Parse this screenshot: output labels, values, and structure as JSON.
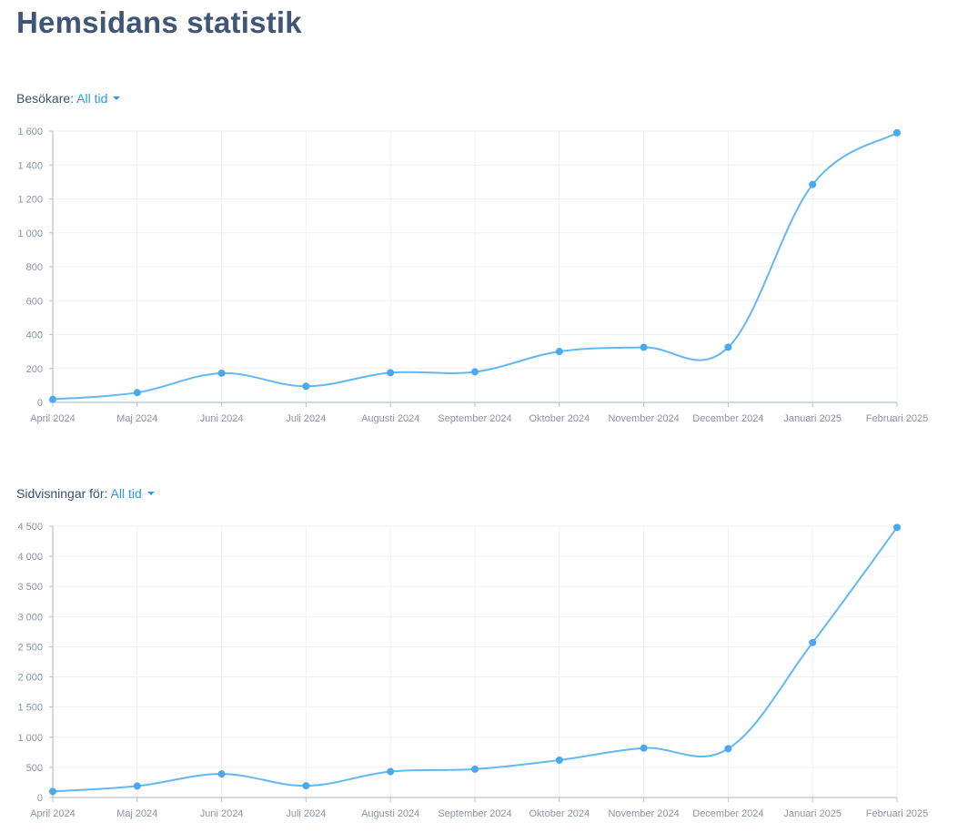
{
  "page": {
    "title": "Hemsidans statistik"
  },
  "charts": [
    {
      "label": "Besökare:",
      "range": "All tid"
    },
    {
      "label": "Sidvisningar för:",
      "range": "All tid"
    }
  ],
  "colors": {
    "line": "#62b8f0",
    "point": "#4aa8ec",
    "grid": "#eef0f4",
    "axis": "#b9bfcc",
    "title": "#3f5676",
    "link": "#2b9ae8"
  },
  "chart_data": [
    {
      "type": "line",
      "title": "",
      "xlabel": "",
      "ylabel": "",
      "categories": [
        "April 2024",
        "Maj 2024",
        "Juni 2024",
        "Juli 2024",
        "Augusti 2024",
        "September 2024",
        "Oktober 2024",
        "November 2024",
        "December 2024",
        "Januari 2025",
        "Februari 2025"
      ],
      "values": [
        18,
        58,
        172,
        95,
        175,
        180,
        300,
        325,
        325,
        1285,
        1590
      ],
      "ylim": [
        0,
        1600
      ],
      "yticks": [
        0,
        200,
        400,
        600,
        800,
        1000,
        1200,
        1400,
        1600
      ],
      "ytick_labels": [
        "0",
        "200",
        "400",
        "600",
        "800",
        "1 000",
        "1 200",
        "1 400",
        "1 600"
      ],
      "grid": true
    },
    {
      "type": "line",
      "title": "",
      "xlabel": "",
      "ylabel": "",
      "categories": [
        "April 2024",
        "Maj 2024",
        "Juni 2024",
        "Juli 2024",
        "Augusti 2024",
        "September 2024",
        "Oktober 2024",
        "November 2024",
        "December 2024",
        "Januari 2025",
        "Februari 2025"
      ],
      "values": [
        100,
        190,
        390,
        195,
        430,
        470,
        620,
        820,
        810,
        2570,
        4480
      ],
      "ylim": [
        0,
        4500
      ],
      "yticks": [
        0,
        500,
        1000,
        1500,
        2000,
        2500,
        3000,
        3500,
        4000,
        4500
      ],
      "ytick_labels": [
        "0",
        "500",
        "1 000",
        "1 500",
        "2 000",
        "2 500",
        "3 000",
        "3 500",
        "4 000",
        "4 500"
      ],
      "grid": true
    }
  ]
}
